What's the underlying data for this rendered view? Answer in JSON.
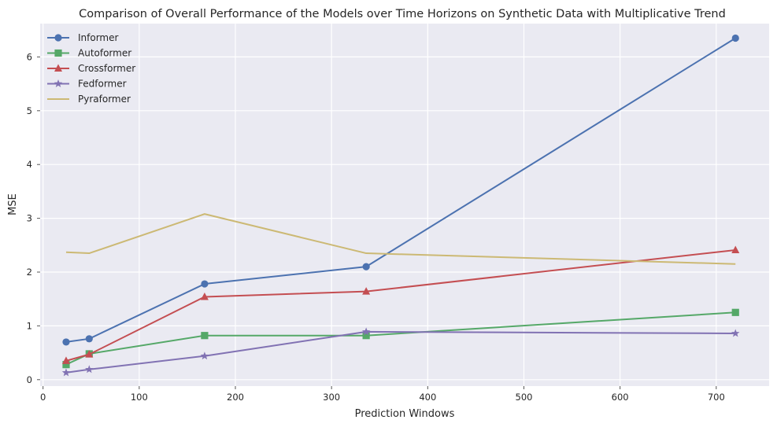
{
  "chart_data": {
    "type": "line",
    "title": "Comparison of Overall Performance of the Models over Time Horizons on Synthetic Data with Multiplicative Trend",
    "xlabel": "Prediction Windows",
    "ylabel": "MSE",
    "x": [
      24,
      48,
      168,
      336,
      720
    ],
    "xlim": [
      -3,
      755
    ],
    "ylim": [
      -0.12,
      6.62
    ],
    "xticks": [
      0,
      100,
      200,
      300,
      400,
      500,
      600,
      700
    ],
    "yticks": [
      0,
      1,
      2,
      3,
      4,
      5,
      6
    ],
    "grid": true,
    "legend_position": "top-left",
    "series": [
      {
        "name": "Informer",
        "color": "#4c72b0",
        "marker": "circle",
        "values": [
          0.7,
          0.76,
          1.78,
          2.1,
          6.35
        ]
      },
      {
        "name": "Autoformer",
        "color": "#55a868",
        "marker": "square",
        "values": [
          0.28,
          0.48,
          0.82,
          0.82,
          1.25
        ]
      },
      {
        "name": "Crossformer",
        "color": "#c44e52",
        "marker": "triangle",
        "values": [
          0.35,
          0.47,
          1.54,
          1.64,
          2.41
        ]
      },
      {
        "name": "Fedformer",
        "color": "#8172b3",
        "marker": "star",
        "values": [
          0.13,
          0.19,
          0.44,
          0.89,
          0.86
        ]
      },
      {
        "name": "Pyraformer",
        "color": "#ccb974",
        "marker": "none",
        "values": [
          2.37,
          2.35,
          3.08,
          2.35,
          2.15
        ]
      }
    ]
  }
}
